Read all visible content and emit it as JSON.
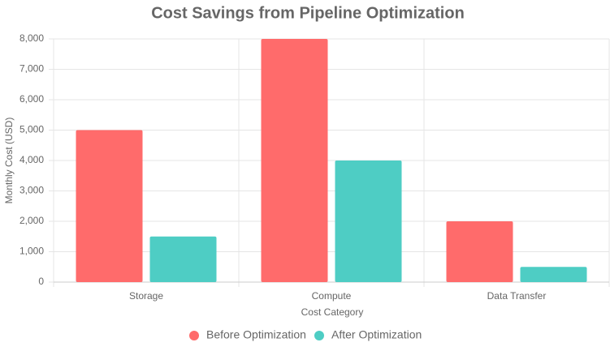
{
  "chart_data": {
    "type": "bar",
    "title": "Cost Savings from Pipeline Optimization",
    "x_label": "Cost Category",
    "y_label": "Monthly Cost (USD)",
    "categories": [
      "Storage",
      "Compute",
      "Data Transfer"
    ],
    "series": [
      {
        "name": "Before Optimization",
        "color": "#ff6b6b",
        "values": [
          5000,
          8000,
          2000
        ]
      },
      {
        "name": "After Optimization",
        "color": "#4ecdc4",
        "values": [
          1500,
          4000,
          500
        ]
      }
    ],
    "ylim": [
      0,
      8000
    ],
    "yticks": [
      0,
      {
        "value": 1000,
        "label": "1,000"
      },
      {
        "value": 2000,
        "label": "2,000"
      },
      {
        "value": 3000,
        "label": "3,000"
      },
      {
        "value": 4000,
        "label": "4,000"
      },
      {
        "value": 5000,
        "label": "5,000"
      },
      {
        "value": 6000,
        "label": "6,000"
      },
      {
        "value": 7000,
        "label": "7,000"
      },
      {
        "value": 8000,
        "label": "8,000"
      }
    ],
    "grid": true,
    "legend": "bottom"
  }
}
